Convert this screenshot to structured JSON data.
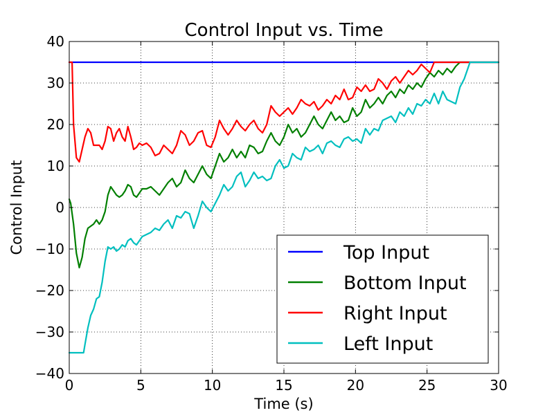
{
  "chart_data": {
    "type": "line",
    "title": "Control Input vs. Time",
    "xlabel": "Time (s)",
    "ylabel": "Control Input",
    "xlim": [
      0,
      30
    ],
    "ylim": [
      -40,
      40
    ],
    "xticks": [
      0,
      5,
      10,
      15,
      20,
      25,
      30
    ],
    "yticks": [
      -40,
      -30,
      -20,
      -10,
      0,
      10,
      20,
      30,
      40
    ],
    "xtick_labels": [
      "0",
      "5",
      "10",
      "15",
      "20",
      "25",
      "30"
    ],
    "ytick_labels": [
      "−40",
      "−30",
      "−20",
      "−10",
      "0",
      "10",
      "20",
      "30",
      "40"
    ],
    "grid": true,
    "legend_position": "lower-right",
    "series": [
      {
        "name": "Top Input",
        "color": "#0000ff",
        "x": [
          0,
          30
        ],
        "y": [
          35,
          35
        ]
      },
      {
        "name": "Bottom Input",
        "color": "#007f00",
        "x": [
          0,
          0.1,
          0.3,
          0.5,
          0.7,
          0.9,
          1.1,
          1.3,
          1.5,
          1.7,
          1.9,
          2.1,
          2.3,
          2.5,
          2.7,
          2.9,
          3.1,
          3.3,
          3.5,
          3.7,
          3.9,
          4.1,
          4.3,
          4.5,
          4.7,
          4.9,
          5.1,
          5.4,
          5.7,
          6.0,
          6.3,
          6.6,
          6.9,
          7.2,
          7.5,
          7.8,
          8.1,
          8.4,
          8.7,
          9.0,
          9.3,
          9.6,
          9.9,
          10.2,
          10.5,
          10.8,
          11.1,
          11.4,
          11.7,
          12.0,
          12.3,
          12.6,
          12.9,
          13.2,
          13.5,
          13.8,
          14.1,
          14.4,
          14.7,
          15.0,
          15.3,
          15.6,
          15.9,
          16.2,
          16.5,
          16.8,
          17.1,
          17.4,
          17.7,
          18.0,
          18.3,
          18.6,
          18.9,
          19.2,
          19.5,
          19.8,
          20.1,
          20.4,
          20.7,
          21.0,
          21.3,
          21.6,
          21.9,
          22.2,
          22.5,
          22.8,
          23.1,
          23.4,
          23.7,
          24.0,
          24.3,
          24.6,
          24.9,
          25.2,
          25.5,
          25.8,
          26.1,
          26.4,
          26.7,
          27.0,
          27.3,
          27.6,
          30.0
        ],
        "y": [
          2,
          1,
          -4,
          -11,
          -14.5,
          -12,
          -7.5,
          -5,
          -4.5,
          -4,
          -3,
          -4,
          -3,
          -1,
          3,
          5,
          4,
          3,
          2.5,
          3,
          4,
          5.5,
          5,
          3,
          2.5,
          3.5,
          4.5,
          4.5,
          5,
          4,
          3,
          4.5,
          6,
          7,
          5,
          6,
          9,
          7,
          6,
          8,
          10,
          8,
          7,
          10,
          13,
          11,
          12,
          14,
          12,
          13.5,
          12,
          15,
          14.5,
          13,
          13.5,
          16,
          18,
          16,
          15,
          17,
          20,
          18,
          19,
          17,
          18,
          20,
          22,
          20,
          19,
          21,
          23,
          21,
          22,
          20.5,
          21,
          24,
          22,
          23,
          26,
          24,
          25,
          26.5,
          25,
          27,
          28,
          26.5,
          28.5,
          27.5,
          29.5,
          28.5,
          30,
          29,
          31,
          32.5,
          31.5,
          33,
          32,
          33.5,
          32.5,
          34,
          35,
          35,
          35
        ]
      },
      {
        "name": "Right Input",
        "color": "#ff0000",
        "x": [
          0,
          0.2,
          0.3,
          0.5,
          0.7,
          0.9,
          1.1,
          1.3,
          1.5,
          1.7,
          1.9,
          2.1,
          2.3,
          2.5,
          2.7,
          2.9,
          3.1,
          3.3,
          3.5,
          3.7,
          3.9,
          4.1,
          4.3,
          4.5,
          4.7,
          4.9,
          5.1,
          5.4,
          5.7,
          6.0,
          6.3,
          6.6,
          6.9,
          7.2,
          7.5,
          7.8,
          8.1,
          8.4,
          8.7,
          9.0,
          9.3,
          9.6,
          9.9,
          10.2,
          10.5,
          10.8,
          11.1,
          11.4,
          11.7,
          12.0,
          12.3,
          12.6,
          12.9,
          13.2,
          13.5,
          13.8,
          14.1,
          14.4,
          14.7,
          15.0,
          15.3,
          15.6,
          15.9,
          16.2,
          16.5,
          16.8,
          17.1,
          17.4,
          17.7,
          18.0,
          18.3,
          18.6,
          18.9,
          19.2,
          19.5,
          19.8,
          20.1,
          20.4,
          20.7,
          21.0,
          21.3,
          21.6,
          21.9,
          22.2,
          22.5,
          22.8,
          23.1,
          23.4,
          23.7,
          24.0,
          24.3,
          24.6,
          24.9,
          25.2,
          25.5,
          25.8,
          26.1,
          26.4,
          26.7,
          27.0,
          27.3,
          27.6,
          28.0,
          30.0
        ],
        "y": [
          35,
          35,
          20,
          12,
          11,
          14,
          17,
          19,
          18,
          15,
          15,
          15,
          14,
          16,
          19.5,
          19,
          16,
          18,
          19,
          17,
          16,
          19.5,
          17,
          14,
          14.5,
          15.5,
          15,
          15.5,
          14.5,
          12.5,
          13,
          15,
          14,
          13,
          15,
          18.5,
          17.5,
          15,
          16,
          18,
          18.5,
          15,
          14.5,
          17,
          21,
          19,
          17.5,
          19,
          21,
          19.5,
          18.5,
          20,
          21,
          19,
          18,
          20,
          24.5,
          23,
          22,
          23,
          24,
          22.5,
          24,
          26,
          25,
          24.5,
          25.5,
          23.5,
          24.5,
          26,
          25,
          27,
          26,
          28.5,
          26,
          26.5,
          29,
          28,
          29.5,
          28,
          28.5,
          31,
          30,
          28.5,
          30.5,
          31.5,
          30,
          31.5,
          33,
          32,
          33,
          34.5,
          33.5,
          32.5,
          35,
          35,
          35,
          35,
          35,
          35,
          35,
          35,
          35,
          35
        ]
      },
      {
        "name": "Left Input",
        "color": "#00bfbf",
        "x": [
          0,
          0.5,
          1.0,
          1.1,
          1.3,
          1.5,
          1.7,
          1.9,
          2.1,
          2.3,
          2.5,
          2.7,
          2.9,
          3.1,
          3.3,
          3.5,
          3.7,
          3.9,
          4.1,
          4.3,
          4.5,
          4.7,
          4.9,
          5.1,
          5.4,
          5.7,
          6.0,
          6.3,
          6.6,
          6.9,
          7.2,
          7.5,
          7.8,
          8.1,
          8.4,
          8.7,
          9.0,
          9.3,
          9.6,
          9.9,
          10.2,
          10.5,
          10.8,
          11.1,
          11.4,
          11.7,
          12.0,
          12.3,
          12.6,
          12.9,
          13.2,
          13.5,
          13.8,
          14.1,
          14.4,
          14.7,
          15.0,
          15.3,
          15.6,
          15.9,
          16.2,
          16.5,
          16.8,
          17.1,
          17.4,
          17.7,
          18.0,
          18.3,
          18.6,
          18.9,
          19.2,
          19.5,
          19.8,
          20.1,
          20.4,
          20.7,
          21.0,
          21.3,
          21.6,
          21.9,
          22.2,
          22.5,
          22.8,
          23.1,
          23.4,
          23.7,
          24.0,
          24.3,
          24.6,
          24.9,
          25.2,
          25.5,
          25.8,
          26.1,
          26.4,
          26.7,
          27.0,
          27.3,
          27.6,
          28.0,
          30.0
        ],
        "y": [
          -35,
          -35,
          -35,
          -33,
          -29,
          -26,
          -24.5,
          -22,
          -21.5,
          -18,
          -13,
          -9.5,
          -10,
          -9.5,
          -10.5,
          -10,
          -9,
          -9.5,
          -8,
          -7.5,
          -8.5,
          -9,
          -8,
          -7,
          -6.5,
          -6,
          -5,
          -5.5,
          -4,
          -3,
          -5,
          -2,
          -2.5,
          -1,
          -1.5,
          -5,
          -2,
          1.5,
          0,
          -1,
          1,
          3,
          5.5,
          4,
          5,
          7.5,
          8.5,
          5,
          6.5,
          8.5,
          7,
          7.5,
          6.5,
          7,
          10,
          11.5,
          9.5,
          10,
          13,
          12,
          11.5,
          14.5,
          13.5,
          14,
          15,
          13,
          15.5,
          16,
          15,
          14.5,
          16.5,
          17,
          16,
          16.5,
          15.5,
          19,
          17.5,
          19,
          18.5,
          21,
          21.5,
          22,
          20.5,
          23,
          22,
          24,
          22.5,
          25,
          24.5,
          26,
          25,
          27.5,
          25,
          28,
          26,
          25.5,
          25,
          29,
          31,
          35,
          35
        ]
      }
    ]
  }
}
